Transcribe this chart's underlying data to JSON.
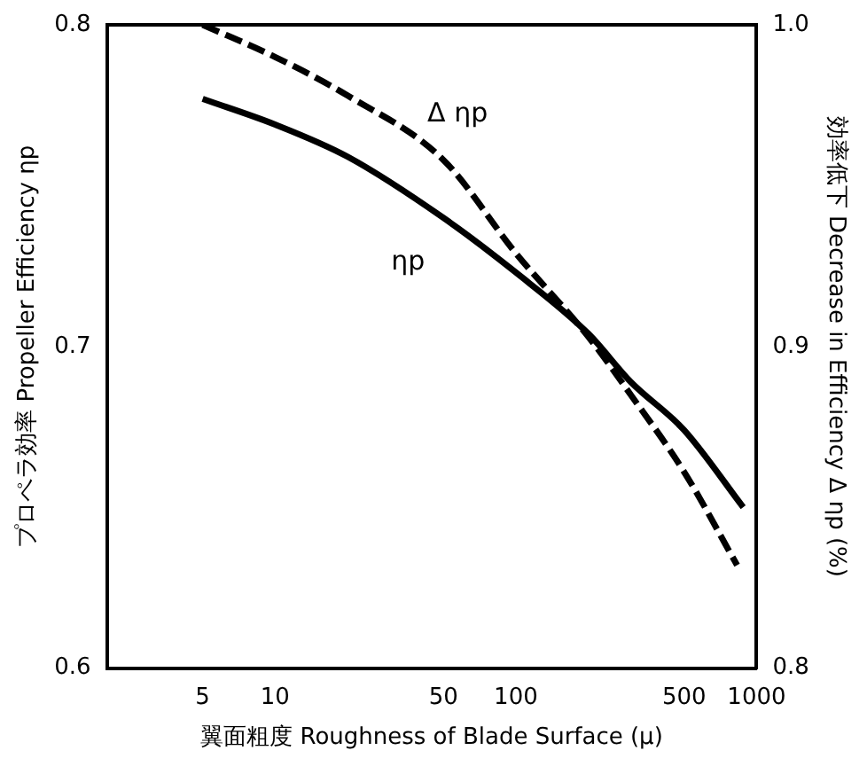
{
  "chart_data": {
    "type": "line",
    "xlabel": "翼面粗度 Roughness of Blade Surface (μ)",
    "ylabel": "プロペラ効率 Propeller Efficiency ηp",
    "y2label": "効率低下 Decrease in Efficiency Δ ηp (%)",
    "x": [
      5,
      10,
      20,
      50,
      100,
      200,
      300,
      500,
      880
    ],
    "series": [
      {
        "name": "ηp",
        "color": "#000000",
        "line_style": "solid",
        "values": [
          0.777,
          0.769,
          0.759,
          0.74,
          0.723,
          0.704,
          0.689,
          0.674,
          0.65
        ]
      },
      {
        "name": "Δ ηp",
        "color": "#000000",
        "line_style": "dashed",
        "axis": "y2",
        "x": [
          5,
          10,
          20,
          50,
          100,
          200,
          300,
          500,
          830
        ],
        "values": [
          1.0,
          0.99,
          0.978,
          0.958,
          0.929,
          0.903,
          0.885,
          0.861,
          0.832
        ]
      }
    ],
    "log": "x",
    "xlim": [
      2,
      1000
    ],
    "xticks": [
      5,
      10,
      50,
      100,
      500,
      1000
    ],
    "ylim": [
      0.6,
      0.8
    ],
    "yticks": [
      0.6,
      0.7,
      0.8
    ],
    "y2lim": [
      0.8,
      1.0
    ],
    "y2ticks": [
      0.8,
      0.9,
      {
        "value": 1.0,
        "label": "1.0"
      }
    ],
    "grid": false,
    "legend": false,
    "marker": "none"
  }
}
